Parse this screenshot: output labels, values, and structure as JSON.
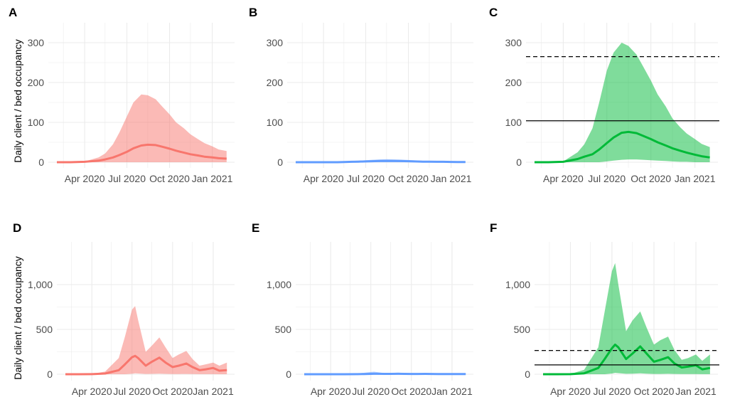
{
  "figure": {
    "ylabel": "Daily client / bed occupancy",
    "x_ticks": [
      "Apr 2020",
      "Jul 2020",
      "Oct 2020",
      "Jan 2021"
    ]
  },
  "colors": {
    "red": "#f8766d",
    "blue": "#619cff",
    "green": "#00ba38",
    "grid": "#ebebeb",
    "reference": "#000000"
  },
  "chart_data": [
    {
      "panel": "A",
      "type": "area",
      "color": "red",
      "ylim": [
        0,
        320
      ],
      "y_ticks": [
        0,
        100,
        200,
        300
      ],
      "y_tick_labels": [
        "0",
        "100",
        "200",
        "300"
      ],
      "x": [
        "2020-02-01",
        "2020-03-01",
        "2020-04-01",
        "2020-05-01",
        "2020-05-15",
        "2020-06-01",
        "2020-06-15",
        "2020-07-01",
        "2020-07-15",
        "2020-08-01",
        "2020-08-15",
        "2020-09-01",
        "2020-09-15",
        "2020-10-01",
        "2020-10-15",
        "2020-11-01",
        "2020-11-15",
        "2020-12-01",
        "2020-12-15",
        "2021-01-01",
        "2021-01-15",
        "2021-02-01"
      ],
      "series": [
        {
          "role": "mean",
          "values": [
            0,
            0,
            1,
            4,
            7,
            12,
            18,
            26,
            35,
            42,
            44,
            43,
            39,
            34,
            29,
            24,
            20,
            17,
            14,
            12,
            10,
            9
          ]
        },
        {
          "role": "upper",
          "values": [
            0,
            0,
            2,
            12,
            22,
            45,
            75,
            115,
            150,
            170,
            168,
            158,
            140,
            120,
            100,
            85,
            70,
            58,
            48,
            40,
            32,
            28
          ]
        },
        {
          "role": "lower",
          "values": [
            0,
            0,
            0,
            0,
            0,
            0,
            0,
            0,
            0,
            0,
            0,
            0,
            0,
            0,
            0,
            0,
            0,
            0,
            0,
            0,
            0,
            0
          ]
        }
      ],
      "reference_lines": []
    },
    {
      "panel": "B",
      "type": "area",
      "color": "blue",
      "ylim": [
        0,
        320
      ],
      "y_ticks": [
        0,
        100,
        200,
        300
      ],
      "y_tick_labels": [
        "0",
        "100",
        "200",
        "300"
      ],
      "x": [
        "2020-02-01",
        "2020-03-01",
        "2020-04-01",
        "2020-05-01",
        "2020-05-15",
        "2020-06-01",
        "2020-06-15",
        "2020-07-01",
        "2020-07-15",
        "2020-08-01",
        "2020-08-15",
        "2020-09-01",
        "2020-09-15",
        "2020-10-01",
        "2020-10-15",
        "2020-11-01",
        "2020-11-15",
        "2020-12-01",
        "2020-12-15",
        "2021-01-01",
        "2021-01-15",
        "2021-02-01"
      ],
      "series": [
        {
          "role": "mean",
          "values": [
            0,
            0,
            0,
            0,
            0.5,
            1,
            1.5,
            2,
            2.5,
            3,
            3,
            3,
            2.8,
            2.5,
            2,
            1.5,
            1.2,
            1,
            1,
            0.8,
            0.5,
            0.5
          ]
        },
        {
          "role": "upper",
          "values": [
            0,
            0,
            0,
            1,
            2,
            3,
            4,
            5,
            6,
            7,
            7.5,
            7,
            6.5,
            5.5,
            4.5,
            3.5,
            3,
            2.5,
            2.5,
            2,
            1.5,
            1.5
          ]
        },
        {
          "role": "lower",
          "values": [
            0,
            0,
            0,
            0,
            0,
            0,
            0,
            0,
            0,
            0,
            0,
            0,
            0,
            0,
            0,
            0,
            0,
            0,
            0,
            0,
            0,
            0
          ]
        }
      ],
      "reference_lines": []
    },
    {
      "panel": "C",
      "type": "area",
      "color": "green",
      "ylim": [
        0,
        320
      ],
      "y_ticks": [
        0,
        100,
        200,
        300
      ],
      "y_tick_labels": [
        "0",
        "100",
        "200",
        "300"
      ],
      "x": [
        "2020-02-01",
        "2020-03-01",
        "2020-04-01",
        "2020-05-01",
        "2020-05-15",
        "2020-06-01",
        "2020-06-15",
        "2020-07-01",
        "2020-07-15",
        "2020-08-01",
        "2020-08-15",
        "2020-09-01",
        "2020-09-15",
        "2020-10-01",
        "2020-10-15",
        "2020-11-01",
        "2020-11-15",
        "2020-12-01",
        "2020-12-15",
        "2021-01-01",
        "2021-01-15",
        "2021-02-01"
      ],
      "series": [
        {
          "role": "mean",
          "values": [
            0,
            0,
            1,
            8,
            14,
            20,
            32,
            48,
            62,
            74,
            76,
            73,
            66,
            58,
            50,
            42,
            35,
            29,
            24,
            19,
            15,
            12
          ]
        },
        {
          "role": "upper",
          "values": [
            0,
            0,
            2,
            25,
            45,
            85,
            150,
            230,
            275,
            300,
            292,
            270,
            240,
            205,
            170,
            140,
            110,
            88,
            72,
            58,
            46,
            38
          ]
        },
        {
          "role": "lower",
          "values": [
            0,
            0,
            0,
            0,
            0,
            0,
            0,
            2,
            4,
            6,
            7,
            7,
            6,
            5,
            4,
            3,
            2,
            1,
            1,
            0,
            0,
            0
          ]
        }
      ],
      "reference_lines": [
        {
          "value": 265,
          "style": "dashed"
        },
        {
          "value": 104,
          "style": "solid"
        }
      ]
    },
    {
      "panel": "D",
      "type": "area",
      "color": "red",
      "ylim": [
        0,
        1300
      ],
      "y_ticks": [
        0,
        500,
        1000
      ],
      "y_tick_labels": [
        "0",
        "500",
        "1,000"
      ],
      "x": [
        "2020-02-01",
        "2020-03-01",
        "2020-04-01",
        "2020-05-01",
        "2020-06-01",
        "2020-06-15",
        "2020-07-01",
        "2020-07-08",
        "2020-07-15",
        "2020-08-01",
        "2020-08-15",
        "2020-09-01",
        "2020-09-15",
        "2020-10-01",
        "2020-10-15",
        "2020-11-01",
        "2020-11-15",
        "2020-12-01",
        "2020-12-15",
        "2021-01-01",
        "2021-01-15",
        "2021-02-01"
      ],
      "series": [
        {
          "role": "mean",
          "values": [
            0,
            0,
            1,
            8,
            45,
            110,
            190,
            205,
            180,
            95,
            140,
            185,
            130,
            80,
            95,
            120,
            80,
            45,
            55,
            70,
            40,
            45
          ]
        },
        {
          "role": "upper",
          "values": [
            0,
            0,
            2,
            30,
            180,
            420,
            720,
            760,
            600,
            250,
            320,
            410,
            300,
            180,
            220,
            260,
            170,
            95,
            110,
            130,
            95,
            130
          ]
        },
        {
          "role": "lower",
          "values": [
            0,
            0,
            0,
            0,
            0,
            0,
            5,
            10,
            8,
            3,
            4,
            6,
            4,
            2,
            2,
            3,
            2,
            1,
            1,
            1,
            0,
            0
          ]
        }
      ],
      "reference_lines": []
    },
    {
      "panel": "E",
      "type": "area",
      "color": "blue",
      "ylim": [
        0,
        1300
      ],
      "y_ticks": [
        0,
        500,
        1000
      ],
      "y_tick_labels": [
        "0",
        "500",
        "1,000"
      ],
      "x": [
        "2020-02-01",
        "2020-03-01",
        "2020-04-01",
        "2020-05-01",
        "2020-06-01",
        "2020-06-15",
        "2020-07-01",
        "2020-07-08",
        "2020-07-15",
        "2020-08-01",
        "2020-08-15",
        "2020-09-01",
        "2020-09-15",
        "2020-10-01",
        "2020-10-15",
        "2020-11-01",
        "2020-11-15",
        "2020-12-01",
        "2020-12-15",
        "2021-01-01",
        "2021-01-15",
        "2021-02-01"
      ],
      "series": [
        {
          "role": "mean",
          "values": [
            0,
            0,
            0,
            0,
            1,
            2,
            4,
            5,
            5,
            4,
            4,
            5,
            4,
            3,
            3,
            4,
            3,
            2,
            2,
            2,
            2,
            2
          ]
        },
        {
          "role": "upper",
          "values": [
            0,
            0,
            1,
            3,
            8,
            16,
            25,
            28,
            24,
            12,
            14,
            18,
            14,
            10,
            10,
            12,
            9,
            6,
            6,
            7,
            5,
            6
          ]
        },
        {
          "role": "lower",
          "values": [
            0,
            0,
            0,
            0,
            0,
            0,
            0,
            0,
            0,
            0,
            0,
            0,
            0,
            0,
            0,
            0,
            0,
            0,
            0,
            0,
            0,
            0
          ]
        }
      ],
      "reference_lines": []
    },
    {
      "panel": "F",
      "type": "area",
      "color": "green",
      "ylim": [
        0,
        1300
      ],
      "y_ticks": [
        0,
        500,
        1000
      ],
      "y_tick_labels": [
        "0",
        "500",
        "1,000"
      ],
      "x": [
        "2020-02-01",
        "2020-03-01",
        "2020-04-01",
        "2020-05-01",
        "2020-06-01",
        "2020-06-15",
        "2020-07-01",
        "2020-07-08",
        "2020-07-15",
        "2020-08-01",
        "2020-08-15",
        "2020-09-01",
        "2020-09-15",
        "2020-10-01",
        "2020-10-15",
        "2020-11-01",
        "2020-11-15",
        "2020-12-01",
        "2020-12-15",
        "2021-01-01",
        "2021-01-15",
        "2021-02-01"
      ],
      "series": [
        {
          "role": "mean",
          "values": [
            0,
            0,
            1,
            10,
            70,
            170,
            290,
            330,
            300,
            170,
            230,
            310,
            230,
            140,
            160,
            190,
            120,
            75,
            85,
            100,
            55,
            70
          ]
        },
        {
          "role": "upper",
          "values": [
            0,
            0,
            3,
            50,
            300,
            700,
            1150,
            1240,
            1000,
            480,
            600,
            700,
            520,
            330,
            380,
            420,
            270,
            160,
            180,
            220,
            150,
            220
          ]
        },
        {
          "role": "lower",
          "values": [
            0,
            0,
            0,
            0,
            0,
            0,
            8,
            15,
            12,
            5,
            6,
            10,
            6,
            3,
            3,
            5,
            3,
            2,
            2,
            2,
            1,
            1
          ]
        }
      ],
      "reference_lines": [
        {
          "value": 265,
          "style": "dashed"
        },
        {
          "value": 104,
          "style": "solid"
        }
      ]
    }
  ]
}
